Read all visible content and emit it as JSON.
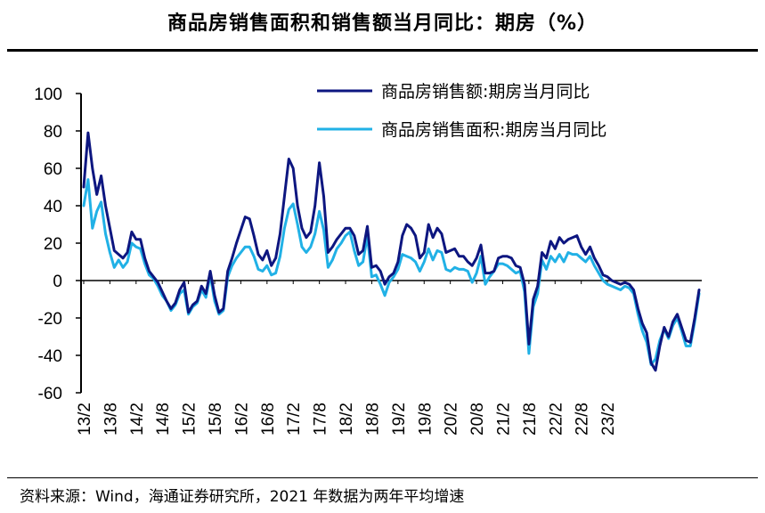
{
  "title": "商品房销售面积和销售额当月同比：期房（%）",
  "source": "资料来源：Wind，海通证券研究所，2021 年数据为两年平均增速",
  "chart_data": {
    "type": "line",
    "ylim": [
      -60,
      100
    ],
    "yticks": [
      "100",
      "80",
      "60",
      "40",
      "20",
      "0",
      "-20",
      "-40",
      "-60"
    ],
    "xticks": [
      "13/2",
      "13/8",
      "14/2",
      "14/8",
      "15/2",
      "15/8",
      "16/2",
      "16/8",
      "17/2",
      "17/8",
      "18/2",
      "18/8",
      "19/2",
      "19/8",
      "20/2",
      "20/8",
      "21/2",
      "21/8",
      "22/2",
      "22/8",
      "23/2"
    ],
    "legend_position": "top-right",
    "series": [
      {
        "name": "商品房销售额:期房当月同比",
        "color": "#0d1680",
        "values": [
          50,
          79,
          60,
          46,
          56,
          40,
          28,
          16,
          14,
          12,
          15,
          26,
          22,
          22,
          12,
          5,
          2,
          -1,
          -6,
          -11,
          -15,
          -12,
          -5,
          -1,
          -17,
          -13,
          -11,
          -3,
          -7,
          5,
          -8,
          -17,
          -15,
          5,
          12,
          20,
          27,
          34,
          33,
          24,
          14,
          11,
          16,
          8,
          12,
          25,
          45,
          65,
          60,
          40,
          28,
          23,
          26,
          40,
          63,
          45,
          15,
          18,
          22,
          25,
          28,
          28,
          24,
          14,
          16,
          29,
          7,
          8,
          5,
          -2,
          2,
          4,
          10,
          24,
          30,
          28,
          24,
          12,
          15,
          30,
          23,
          28,
          25,
          15,
          16,
          17,
          13,
          13,
          10,
          8,
          12,
          19,
          4,
          4,
          5,
          12,
          13,
          13,
          12,
          8,
          7,
          -2,
          -34,
          -10,
          -3,
          15,
          12,
          21,
          17,
          23,
          20,
          22,
          23,
          24,
          18,
          14,
          18,
          12,
          8,
          3,
          2,
          0,
          -1,
          -2,
          -1,
          -2,
          -5,
          -15,
          -23,
          -28,
          -44,
          -48,
          -35,
          -25,
          -30,
          -22,
          -18,
          -25,
          -32,
          -33,
          -20,
          -5
        ]
      },
      {
        "name": "商品房销售面积:期房当月同比",
        "color": "#21b1e6",
        "values": [
          40,
          54,
          28,
          37,
          42,
          25,
          15,
          7,
          11,
          7,
          10,
          20,
          18,
          17,
          9,
          3,
          1,
          -3,
          -8,
          -11,
          -16,
          -13,
          -7,
          -5,
          -18,
          -14,
          -12,
          -5,
          -9,
          3,
          -11,
          -18,
          -16,
          2,
          8,
          12,
          15,
          18,
          18,
          13,
          6,
          5,
          8,
          3,
          4,
          13,
          28,
          38,
          41,
          30,
          18,
          15,
          18,
          25,
          37,
          27,
          7,
          11,
          17,
          20,
          24,
          26,
          16,
          8,
          10,
          24,
          2,
          3,
          -2,
          -8,
          -1,
          2,
          6,
          14,
          13,
          12,
          10,
          5,
          10,
          17,
          11,
          16,
          15,
          6,
          5,
          7,
          6,
          6,
          5,
          -1,
          4,
          13,
          -2,
          2,
          5,
          9,
          9,
          8,
          6,
          4,
          5,
          -6,
          -39,
          -14,
          -7,
          11,
          6,
          13,
          10,
          14,
          10,
          15,
          14,
          14,
          12,
          10,
          13,
          8,
          4,
          0,
          -2,
          -3,
          -4,
          -5,
          -3,
          -4,
          -7,
          -18,
          -27,
          -33,
          -45,
          -42,
          -32,
          -26,
          -31,
          -24,
          -20,
          -27,
          -35,
          -35,
          -22,
          -7
        ]
      }
    ]
  }
}
